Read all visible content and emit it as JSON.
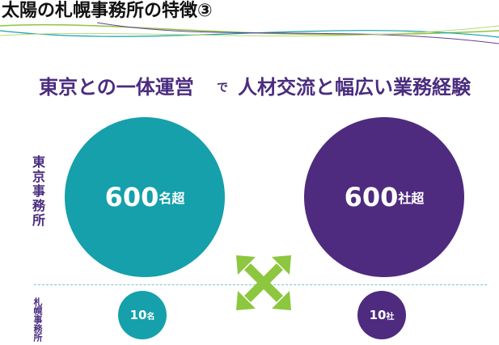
{
  "slide": {
    "title": "太陽の札幌事務所の特徴③"
  },
  "headline": {
    "part1": "東京との一体運営",
    "connector": "で",
    "part2": "人材交流と幅広い業務経験"
  },
  "side_labels": {
    "tokyo": "東京事務所",
    "sapporo": "札幌事務所"
  },
  "tokyo": {
    "people_number": "600",
    "people_unit": "名超",
    "clients_number": "600",
    "clients_unit": "社超"
  },
  "sapporo": {
    "people_number": "10",
    "people_unit": "名",
    "clients_number": "10",
    "clients_unit": "社"
  },
  "colors": {
    "teal": "#15a0ab",
    "purple": "#4e2b7f",
    "headline_purple": "#4a2c7f",
    "arrow_green": "#8dc63f"
  },
  "icons": {
    "exchange": "double-cross-arrows-icon"
  }
}
